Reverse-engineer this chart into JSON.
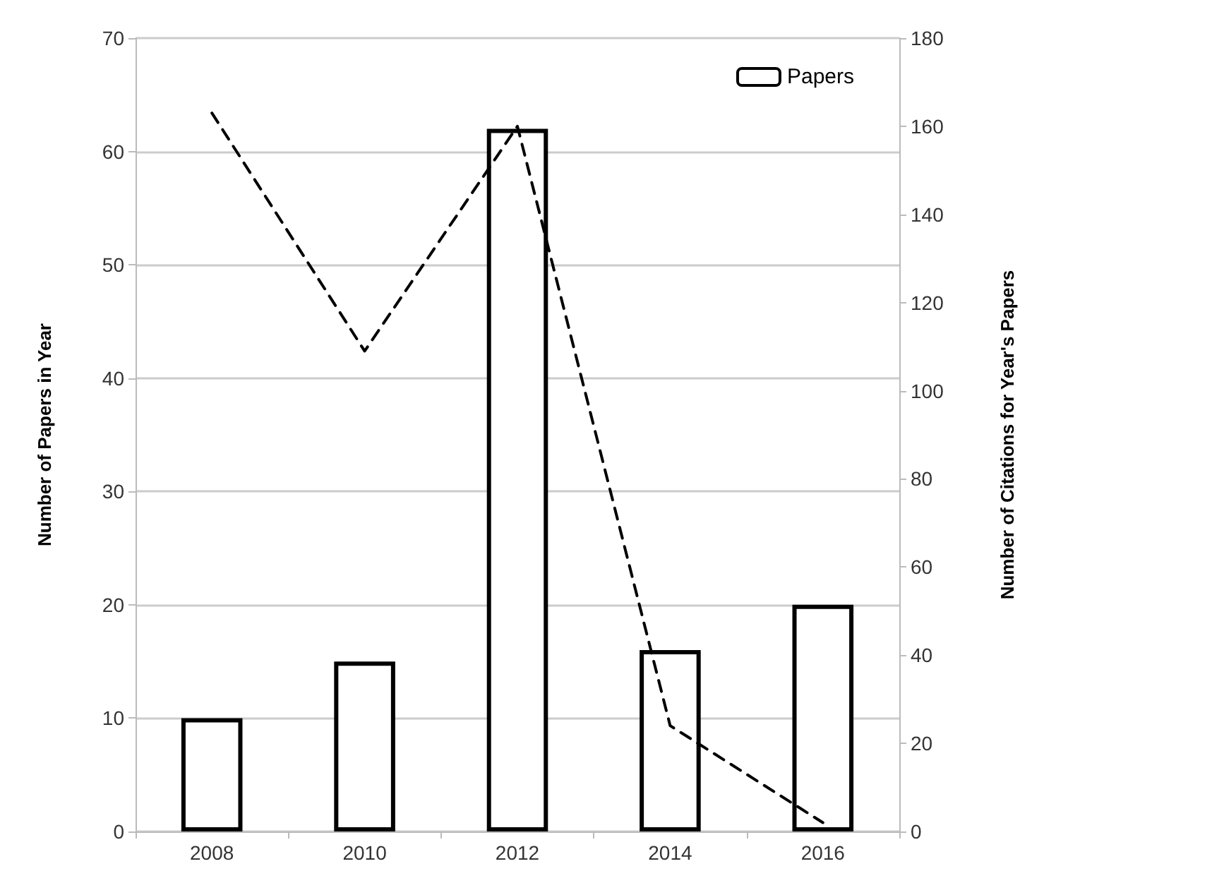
{
  "chart_data": {
    "type": "bar",
    "ylabel": "Number of Papers in Year",
    "y2label": "Number of Citations for Year's Papers",
    "categories": [
      "2008",
      "2010",
      "2012",
      "2014",
      "2016"
    ],
    "series": [
      {
        "name": "Papers",
        "color": "#000000",
        "values": [
          10,
          15,
          62,
          16,
          20
        ]
      },
      {
        "type": "line",
        "axis": "y2",
        "color": "#000000",
        "line_style": "dashed",
        "marker": "none",
        "values": [
          163,
          109,
          160,
          24,
          2
        ]
      }
    ],
    "ylim": [
      0,
      70
    ],
    "yticks": [
      0,
      10,
      20,
      30,
      40,
      50,
      60,
      70
    ],
    "y2lim": [
      0,
      180
    ],
    "y2ticks": [
      0,
      20,
      40,
      60,
      80,
      100,
      120,
      140,
      160,
      180
    ],
    "grid": "y",
    "legend": "top right"
  }
}
